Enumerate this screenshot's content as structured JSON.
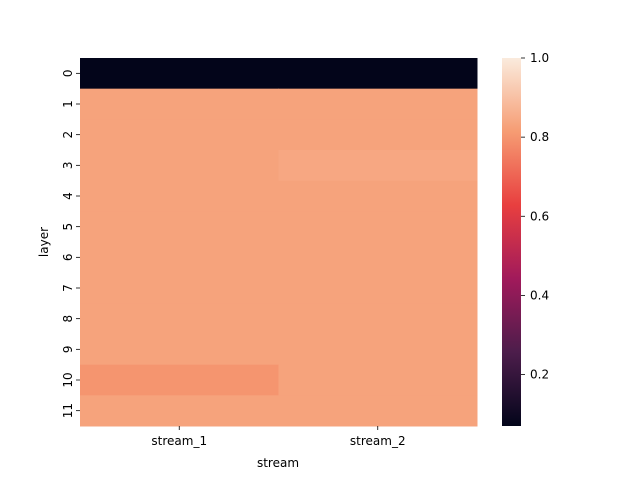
{
  "chart_data": {
    "type": "heatmap",
    "xlabel": "stream",
    "ylabel": "layer",
    "x_categories": [
      "stream_1",
      "stream_2"
    ],
    "y_categories": [
      "0",
      "1",
      "2",
      "3",
      "4",
      "5",
      "6",
      "7",
      "8",
      "9",
      "10",
      "11"
    ],
    "values": [
      [
        0.07,
        0.07
      ],
      [
        0.83,
        0.83
      ],
      [
        0.83,
        0.83
      ],
      [
        0.83,
        0.84
      ],
      [
        0.83,
        0.83
      ],
      [
        0.83,
        0.83
      ],
      [
        0.83,
        0.83
      ],
      [
        0.83,
        0.83
      ],
      [
        0.83,
        0.83
      ],
      [
        0.83,
        0.83
      ],
      [
        0.8,
        0.83
      ],
      [
        0.83,
        0.83
      ]
    ],
    "colorbar": {
      "vmin": 0.07,
      "vmax": 1.0,
      "ticks": [
        0.2,
        0.4,
        0.6,
        0.8,
        1.0
      ],
      "tick_labels": [
        "0.2",
        "0.4",
        "0.6",
        "0.8",
        "1.0"
      ]
    },
    "colormap": "rocket",
    "colormap_stops": [
      "#03051a",
      "#4c1d4b",
      "#a11a5b",
      "#e83f3f",
      "#f69c73",
      "#faebdd"
    ]
  }
}
